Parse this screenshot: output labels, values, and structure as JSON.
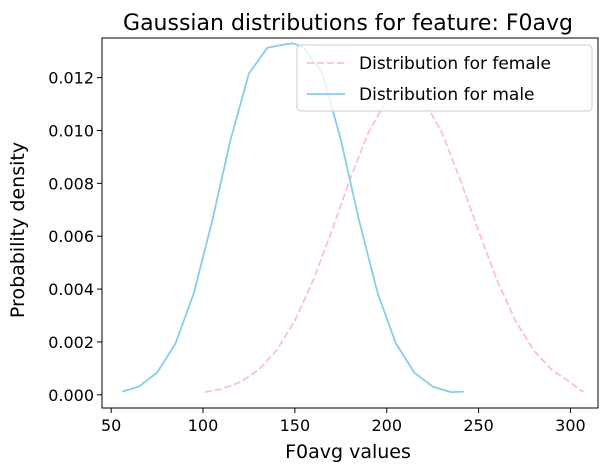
{
  "chart_data": {
    "type": "line",
    "title": "Gaussian distributions for feature: F0avg",
    "xlabel": "F0avg values",
    "ylabel": "Probability density",
    "xlim": [
      45,
      315
    ],
    "ylim": [
      -0.0005,
      0.0135
    ],
    "xticks": [
      "50",
      "100",
      "150",
      "200",
      "250",
      "300"
    ],
    "xtick_values": [
      50,
      100,
      150,
      200,
      250,
      300
    ],
    "yticks": [
      "0.000",
      "0.002",
      "0.004",
      "0.006",
      "0.008",
      "0.010",
      "0.012"
    ],
    "ytick_values": [
      0,
      0.002,
      0.004,
      0.006,
      0.008,
      0.01,
      0.012
    ],
    "grid": false,
    "legend_position": "top-right",
    "series": [
      {
        "name": "Distribution for female",
        "color": "#ffc0cb",
        "style": "dashed",
        "x": [
          101,
          110,
          120,
          130,
          140,
          150,
          160,
          170,
          180,
          190,
          200,
          204,
          210,
          220,
          230,
          240,
          250,
          260,
          270,
          280,
          290,
          300,
          307
        ],
        "y": [
          0.0001,
          0.00022,
          0.00047,
          0.00093,
          0.00168,
          0.00281,
          0.00434,
          0.00619,
          0.00815,
          0.00992,
          0.01117,
          0.0115,
          0.01161,
          0.01117,
          0.00992,
          0.00815,
          0.00619,
          0.00434,
          0.00281,
          0.00168,
          0.00093,
          0.00047,
          0.0001
        ]
      },
      {
        "name": "Distribution for male",
        "color": "#87ceeb",
        "style": "solid",
        "x": [
          56,
          65,
          75,
          85,
          95,
          105,
          115,
          125,
          135,
          145,
          149,
          155,
          165,
          175,
          185,
          195,
          205,
          215,
          225,
          235,
          242
        ],
        "y": [
          0.00012,
          0.00031,
          0.00084,
          0.00194,
          0.00385,
          0.00658,
          0.00966,
          0.01216,
          0.01313,
          0.01326,
          0.0133,
          0.01313,
          0.01216,
          0.00966,
          0.00658,
          0.00385,
          0.00194,
          0.00084,
          0.00031,
          0.0001,
          0.00012
        ]
      }
    ]
  }
}
